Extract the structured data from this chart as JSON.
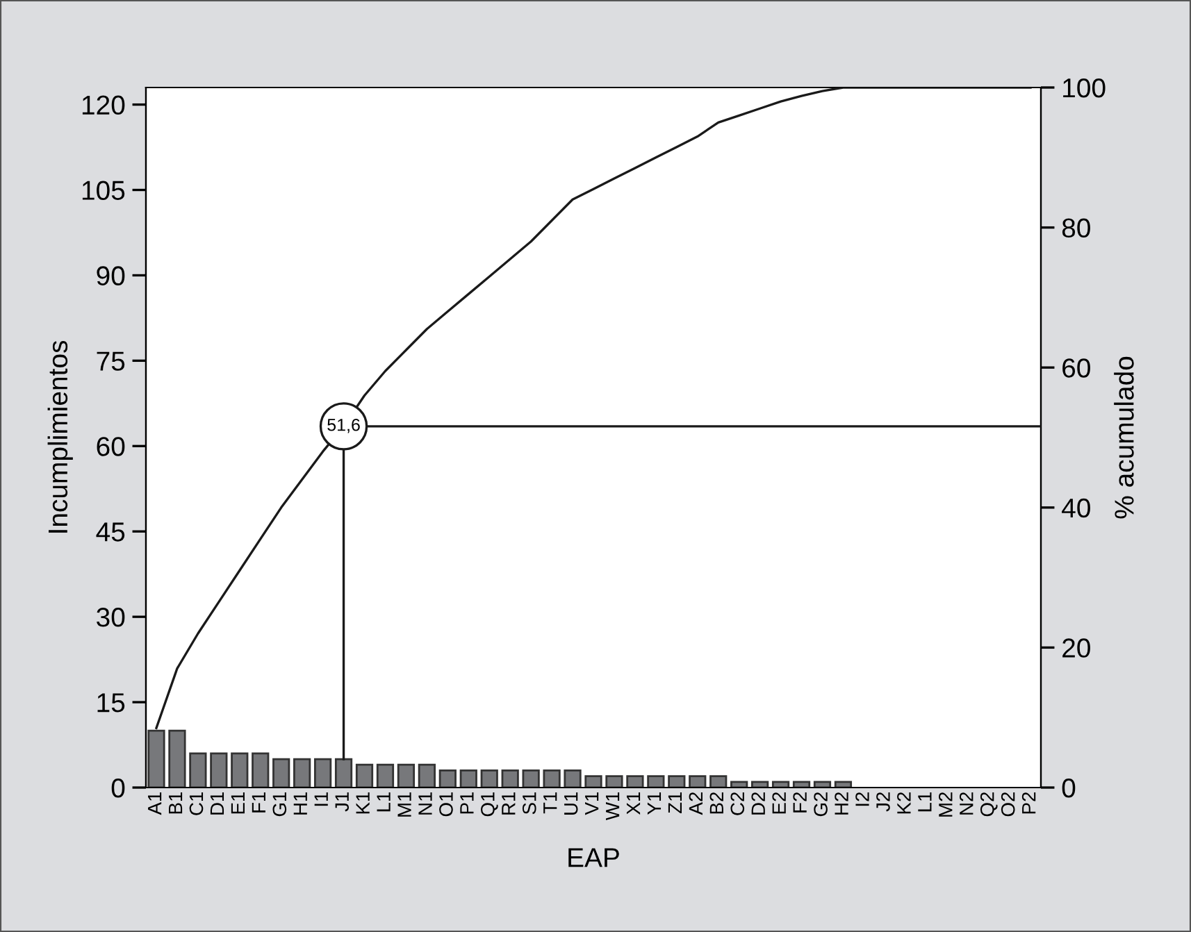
{
  "chart_data": {
    "type": "bar",
    "xlabel": "EAP",
    "ylabel": "Incumplimientos",
    "y2label": "% acumulado",
    "categories": [
      "A1",
      "B1",
      "C1",
      "D1",
      "E1",
      "F1",
      "G1",
      "H1",
      "I1",
      "J1",
      "K1",
      "L1",
      "M1",
      "N1",
      "O1",
      "P1",
      "Q1",
      "R1",
      "S1",
      "T1",
      "U1",
      "V1",
      "W1",
      "X1",
      "Y1",
      "Z1",
      "A2",
      "B2",
      "C2",
      "D2",
      "E2",
      "F2",
      "G2",
      "H2",
      "I2",
      "J2",
      "K2",
      "L1",
      "M2",
      "N2",
      "Q2",
      "O2",
      "P2"
    ],
    "series": [
      {
        "color": "#77787b",
        "values": [
          10,
          10,
          6,
          6,
          6,
          6,
          5,
          5,
          5,
          5,
          4,
          4,
          4,
          4,
          3,
          3,
          3,
          3,
          3,
          3,
          3,
          2,
          2,
          2,
          2,
          2,
          2,
          2,
          1,
          1,
          1,
          1,
          1,
          1,
          0,
          0,
          0,
          0,
          0,
          0,
          0,
          0,
          0
        ]
      },
      {
        "type": "line",
        "axis": "y2",
        "color": "#1a1a1a",
        "values": [
          8.5,
          17,
          22,
          26.5,
          31,
          35.5,
          40,
          44,
          48,
          51.6,
          56,
          59.5,
          62.5,
          65.5,
          68,
          70.5,
          73,
          75.5,
          78,
          81,
          84,
          85.5,
          87,
          88.5,
          90,
          91.5,
          93,
          95,
          96,
          97,
          98,
          98.8,
          99.5,
          100,
          100,
          100,
          100,
          100,
          100,
          100,
          100,
          100,
          100
        ]
      }
    ],
    "ylim": [
      0,
      123
    ],
    "yticks": [
      0,
      15,
      30,
      45,
      60,
      75,
      90,
      105,
      120
    ],
    "y2lim": [
      0,
      100
    ],
    "y2ticks": [
      0,
      20,
      40,
      60,
      80,
      100
    ],
    "ref_lines": [
      {
        "axis": "y2",
        "value": 51.6,
        "label": "51,6"
      }
    ],
    "grid": false,
    "legend": false
  }
}
